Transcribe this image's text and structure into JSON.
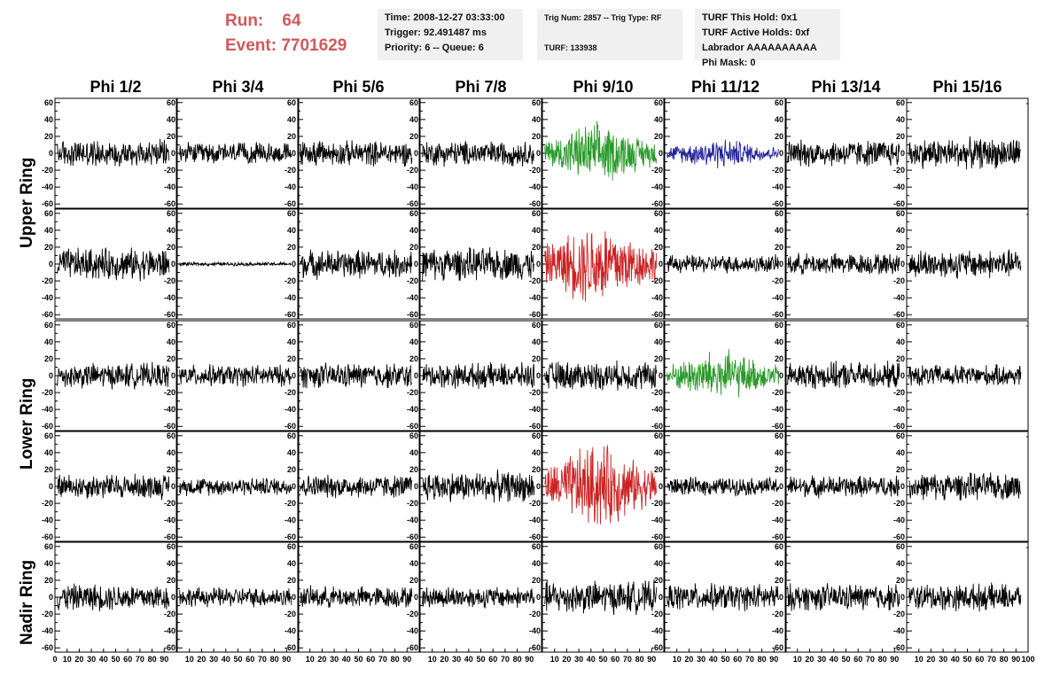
{
  "header": {
    "run_label": "Run:",
    "run_value": "64",
    "event_label": "Event:",
    "event_value": "7701629",
    "time": "Time: 2008-12-27 03:33:00",
    "trigger": "Trigger: 92.491487 ms",
    "priority": "Priority: 6 -- Queue: 6",
    "trig": "Trig Num: 2857 -- Trig Type: RF",
    "turf": "TURF: 133938",
    "turf_hold": "TURF This Hold: 0x1",
    "turf_active": "TURF Active Holds: 0xf",
    "labrador": "Labrador AAAAAAAAAA",
    "phi_mask": "Phi Mask: 0"
  },
  "rings": {
    "upper": "Upper Ring",
    "lower": "Lower Ring",
    "nadir": "Nadir Ring"
  },
  "colors": {
    "trace": "#000000",
    "green": "#2a9a2a",
    "red": "#cc2222",
    "blue": "#22229a"
  },
  "chart_data": {
    "type": "line",
    "title": "",
    "columns": [
      "Phi 1/2",
      "Phi 3/4",
      "Phi 5/6",
      "Phi 7/8",
      "Phi 9/10",
      "Phi 11/12",
      "Phi 13/14",
      "Phi 15/16"
    ],
    "xlim": [
      0,
      100
    ],
    "ylim": [
      -65,
      65
    ],
    "x_ticks": [
      0,
      10,
      20,
      30,
      40,
      50,
      60,
      70,
      80,
      90,
      100
    ],
    "y_ticks": [
      -60,
      -40,
      -20,
      0,
      20,
      40,
      60
    ],
    "grid": false,
    "row_amplitudes": [
      [
        15,
        12,
        14,
        14,
        28,
        14,
        15,
        17
      ],
      [
        18,
        2,
        16,
        18,
        40,
        10,
        12,
        16
      ],
      [
        14,
        12,
        14,
        14,
        16,
        24,
        15,
        12
      ],
      [
        14,
        10,
        13,
        17,
        40,
        10,
        12,
        15
      ],
      [
        15,
        11,
        12,
        12,
        18,
        15,
        15,
        15
      ]
    ],
    "trace_colors": [
      [
        "trace",
        "trace",
        "trace",
        "trace",
        "green",
        "blue",
        "trace",
        "trace"
      ],
      [
        "trace",
        "trace",
        "trace",
        "trace",
        "red",
        "trace",
        "trace",
        "trace"
      ],
      [
        "trace",
        "trace",
        "trace",
        "trace",
        "trace",
        "green",
        "trace",
        "trace"
      ],
      [
        "trace",
        "trace",
        "trace",
        "trace",
        "red",
        "trace",
        "trace",
        "trace"
      ],
      [
        "trace",
        "trace",
        "trace",
        "trace",
        "trace",
        "trace",
        "trace",
        "trace"
      ]
    ]
  }
}
